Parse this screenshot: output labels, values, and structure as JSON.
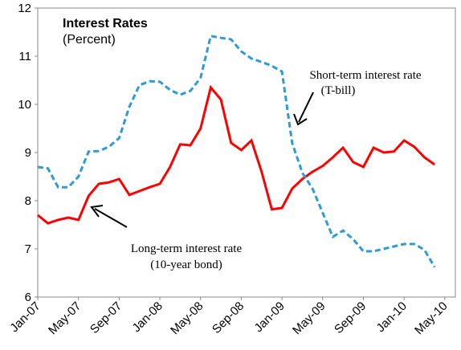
{
  "chart_data": {
    "type": "line",
    "title": "Interest Rates",
    "subtitle": "(Percent)",
    "categories": [
      "Jan-07",
      null,
      null,
      null,
      "May-07",
      null,
      null,
      null,
      "Sep-07",
      null,
      null,
      null,
      "Jan-08",
      null,
      null,
      null,
      "May-08",
      null,
      null,
      null,
      "Sep-08",
      null,
      null,
      null,
      "Jan-09",
      null,
      null,
      null,
      "May-09",
      null,
      null,
      null,
      "Sep-09",
      null,
      null,
      null,
      "Jan-10",
      null,
      null,
      null,
      "May-10"
    ],
    "series": [
      {
        "name": "Long-term interest rate (10-year bond)",
        "color": "#ff0000",
        "dashed": false,
        "values": [
          7.7,
          7.53,
          7.6,
          7.65,
          7.6,
          8.1,
          8.35,
          8.38,
          8.45,
          8.12,
          8.2,
          8.28,
          8.35,
          8.7,
          9.17,
          9.15,
          9.5,
          10.35,
          10.1,
          9.2,
          9.05,
          9.25,
          8.6,
          7.82,
          7.85,
          8.25,
          8.45,
          8.6,
          8.72,
          8.9,
          9.1,
          8.8,
          8.7,
          9.1,
          9.0,
          9.02,
          9.25,
          9.12,
          8.9,
          8.75,
          null
        ]
      },
      {
        "name": "Short-term interest rate (T-bill)",
        "color": "#2e9bd6",
        "dashed": true,
        "values": [
          8.7,
          8.67,
          8.28,
          8.28,
          8.5,
          9.02,
          9.03,
          9.12,
          9.3,
          9.95,
          10.4,
          10.48,
          10.47,
          10.3,
          10.2,
          10.28,
          10.55,
          11.42,
          11.38,
          11.35,
          11.1,
          10.95,
          10.88,
          10.8,
          10.68,
          9.2,
          8.58,
          8.25,
          7.75,
          7.25,
          7.38,
          7.2,
          6.95,
          6.95,
          7.0,
          7.05,
          7.1,
          7.1,
          6.98,
          6.62,
          null
        ]
      }
    ],
    "annotations": [
      "Short-term interest rate",
      "(T-bill)",
      "Long-term interest rate",
      "(10-year bond)"
    ],
    "ylim": [
      6,
      12
    ],
    "yticks": [
      6,
      7,
      8,
      9,
      10,
      11,
      12
    ],
    "grid": false
  }
}
